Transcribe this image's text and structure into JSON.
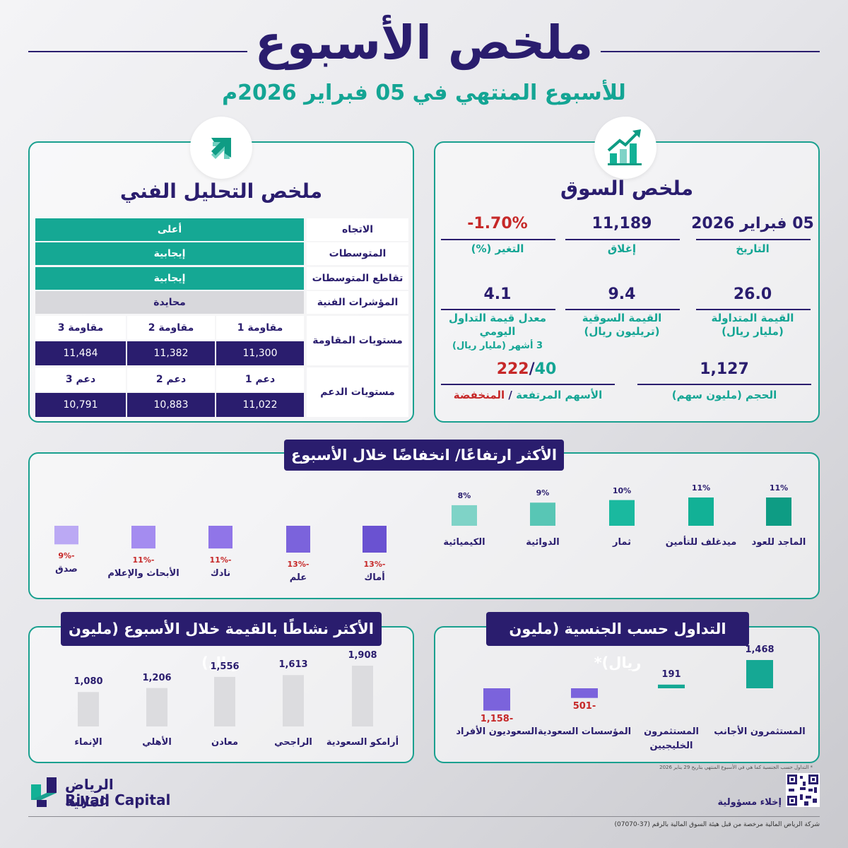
{
  "header": {
    "title": "ملخص الأسبوع",
    "subtitle": "للأسبوع المنتهي في 05 فبراير 2026م"
  },
  "technical": {
    "title": "ملخص التحليل الفني",
    "rows": [
      {
        "label": "الاتجاه",
        "value": "أعلى"
      },
      {
        "label": "المتوسطات",
        "value": "إيجابية"
      },
      {
        "label": "تقاطع المتوسطات",
        "value": "إيجابية"
      },
      {
        "label": "المؤشرات الفنية",
        "value": "محايدة"
      }
    ],
    "resistance": {
      "label": "مستويات المقاومة",
      "headers": [
        "مقاومة 1",
        "مقاومة 2",
        "مقاومة 3"
      ],
      "values": [
        "11,300",
        "11,382",
        "11,484"
      ]
    },
    "support": {
      "label": "مستويات الدعم",
      "headers": [
        "دعم 1",
        "دعم 2",
        "دعم 3"
      ],
      "values": [
        "11,022",
        "10,883",
        "10,791"
      ]
    }
  },
  "market": {
    "title": "ملخص السوق",
    "stats": [
      {
        "value": "05 فبراير 2026",
        "label": "التاريخ"
      },
      {
        "value": "11,189",
        "label": "إغلاق"
      },
      {
        "value": "-1.70%",
        "label": "التغير (%)"
      },
      {
        "value": "26.0",
        "label": "القيمة المتداولة",
        "label2": "(مليار ريال)"
      },
      {
        "value": "9.4",
        "label": "القيمة السوقية",
        "label2": "(تريليون ريال)"
      },
      {
        "value": "4.1",
        "label": "معدل قيمة التداول",
        "label2": "اليومي",
        "label3": "3 أشهر (مليار ريال)"
      }
    ],
    "volume": {
      "value": "1,127",
      "label": "الحجم (مليون سهم)"
    },
    "breadth": {
      "advancers": "40",
      "decliners": "222",
      "separator": "/",
      "label_up": "الأسهم المرتفعة",
      "label_down": "المنخفضة"
    }
  },
  "movers": {
    "title": "الأكثر ارتفاعًا/ انخفاضًا خلال الأسبوع",
    "colors": {
      "up": [
        "#0e9c84",
        "#12b196",
        "#1ab99f",
        "#58c6b5",
        "#7fd3c7"
      ],
      "down": [
        "#6a52d1",
        "#7b63dc",
        "#9075e8",
        "#a48cf0",
        "#bba9f4"
      ]
    },
    "gainers": [
      {
        "name": "الماجد للعود",
        "value": "11%"
      },
      {
        "name": "ميدغلف للتأمين",
        "value": "11%"
      },
      {
        "name": "ثمار",
        "value": "10%"
      },
      {
        "name": "الدوائية",
        "value": "9%"
      },
      {
        "name": "الكيميائية",
        "value": "8%"
      }
    ],
    "losers": [
      {
        "name": "أماك",
        "value": "-13%"
      },
      {
        "name": "علم",
        "value": "-13%"
      },
      {
        "name": "نادك",
        "value": "-11%"
      },
      {
        "name": "الأبحاث والإعلام",
        "value": "-11%"
      },
      {
        "name": "صدق",
        "value": "-9%"
      }
    ]
  },
  "active": {
    "title": "الأكثر نشاطًا بالقيمة خلال الأسبوع (مليون ريال)",
    "items": [
      {
        "name": "أرامكو السعودية",
        "value": "1,908",
        "num": 1908
      },
      {
        "name": "الراجحي",
        "value": "1,613",
        "num": 1613
      },
      {
        "name": "معادن",
        "value": "1,556",
        "num": 1556
      },
      {
        "name": "الأهلي",
        "value": "1,206",
        "num": 1206
      },
      {
        "name": "الإنماء",
        "value": "1,080",
        "num": 1080
      }
    ]
  },
  "nationality": {
    "title": "التداول حسب الجنسية (مليون ريال)*",
    "items": [
      {
        "name": "المستثمرون الأجانب",
        "value": "1,468",
        "num": 1468
      },
      {
        "name": "المستثمرون",
        "name2": "الخليجيين",
        "value": "191",
        "num": 191
      },
      {
        "name": "المؤسسات السعودية",
        "value": "-501",
        "num": -501
      },
      {
        "name": "السعوديون الأفراد",
        "value": "-1,158",
        "num": -1158
      }
    ],
    "footnote": "* التداول حسب الجنسية كما هي في الأسبوع المنتهي بتاريخ 29 يناير 2026"
  },
  "footer": {
    "brand_ar": "الرياض المالية",
    "brand_en": "Riyad Capital",
    "disclaimer": "إخلاء مسؤولية",
    "license": "شركة الرياض المالية مرخصة من قبل هيئة السوق المالية بالرقم (37-07070)"
  }
}
